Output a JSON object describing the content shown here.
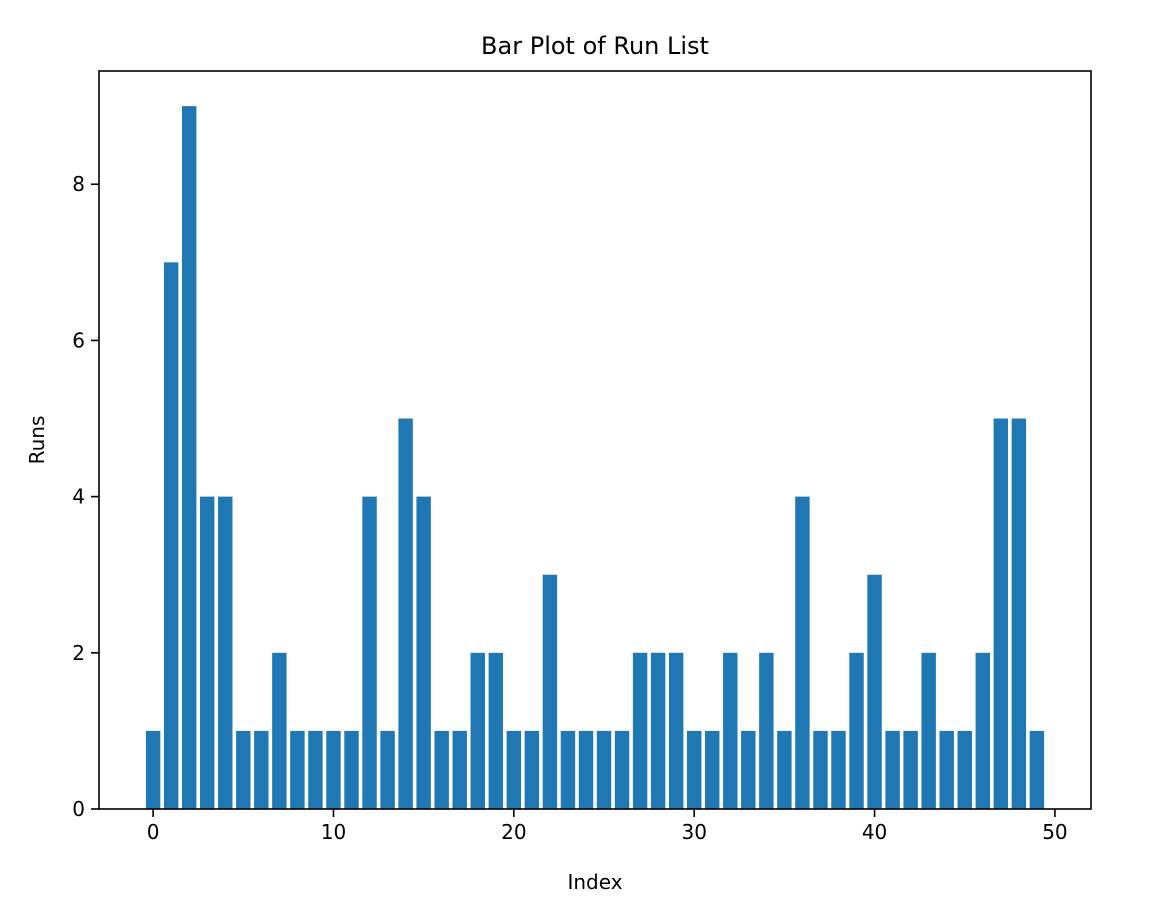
{
  "chart_data": {
    "type": "bar",
    "title": "Bar Plot of Run List",
    "xlabel": "Index",
    "ylabel": "Runs",
    "x": [
      0,
      1,
      2,
      3,
      4,
      5,
      6,
      7,
      8,
      9,
      10,
      11,
      12,
      13,
      14,
      15,
      16,
      17,
      18,
      19,
      20,
      21,
      22,
      23,
      24,
      25,
      26,
      27,
      28,
      29,
      30,
      31,
      32,
      33,
      34,
      35,
      36,
      37,
      38,
      39,
      40,
      41,
      42,
      43,
      44,
      45,
      46,
      47,
      48,
      49
    ],
    "values": [
      1,
      7,
      9,
      4,
      4,
      1,
      1,
      2,
      1,
      1,
      1,
      1,
      4,
      1,
      5,
      4,
      1,
      1,
      2,
      2,
      1,
      1,
      3,
      1,
      1,
      1,
      1,
      2,
      2,
      2,
      1,
      1,
      2,
      1,
      2,
      1,
      4,
      1,
      1,
      2,
      3,
      1,
      1,
      2,
      1,
      1,
      2,
      5,
      5,
      1
    ],
    "bar_color": "#1f77b4",
    "xlim": [
      -3.0,
      52.0
    ],
    "ylim": [
      0,
      9.45
    ],
    "xticks": [
      0,
      10,
      20,
      30,
      40,
      50
    ],
    "xtick_labels": [
      "0",
      "10",
      "20",
      "30",
      "40",
      "50"
    ],
    "yticks": [
      0,
      2,
      4,
      6,
      8
    ],
    "ytick_labels": [
      "0",
      "2",
      "4",
      "6",
      "8"
    ],
    "grid": false
  }
}
